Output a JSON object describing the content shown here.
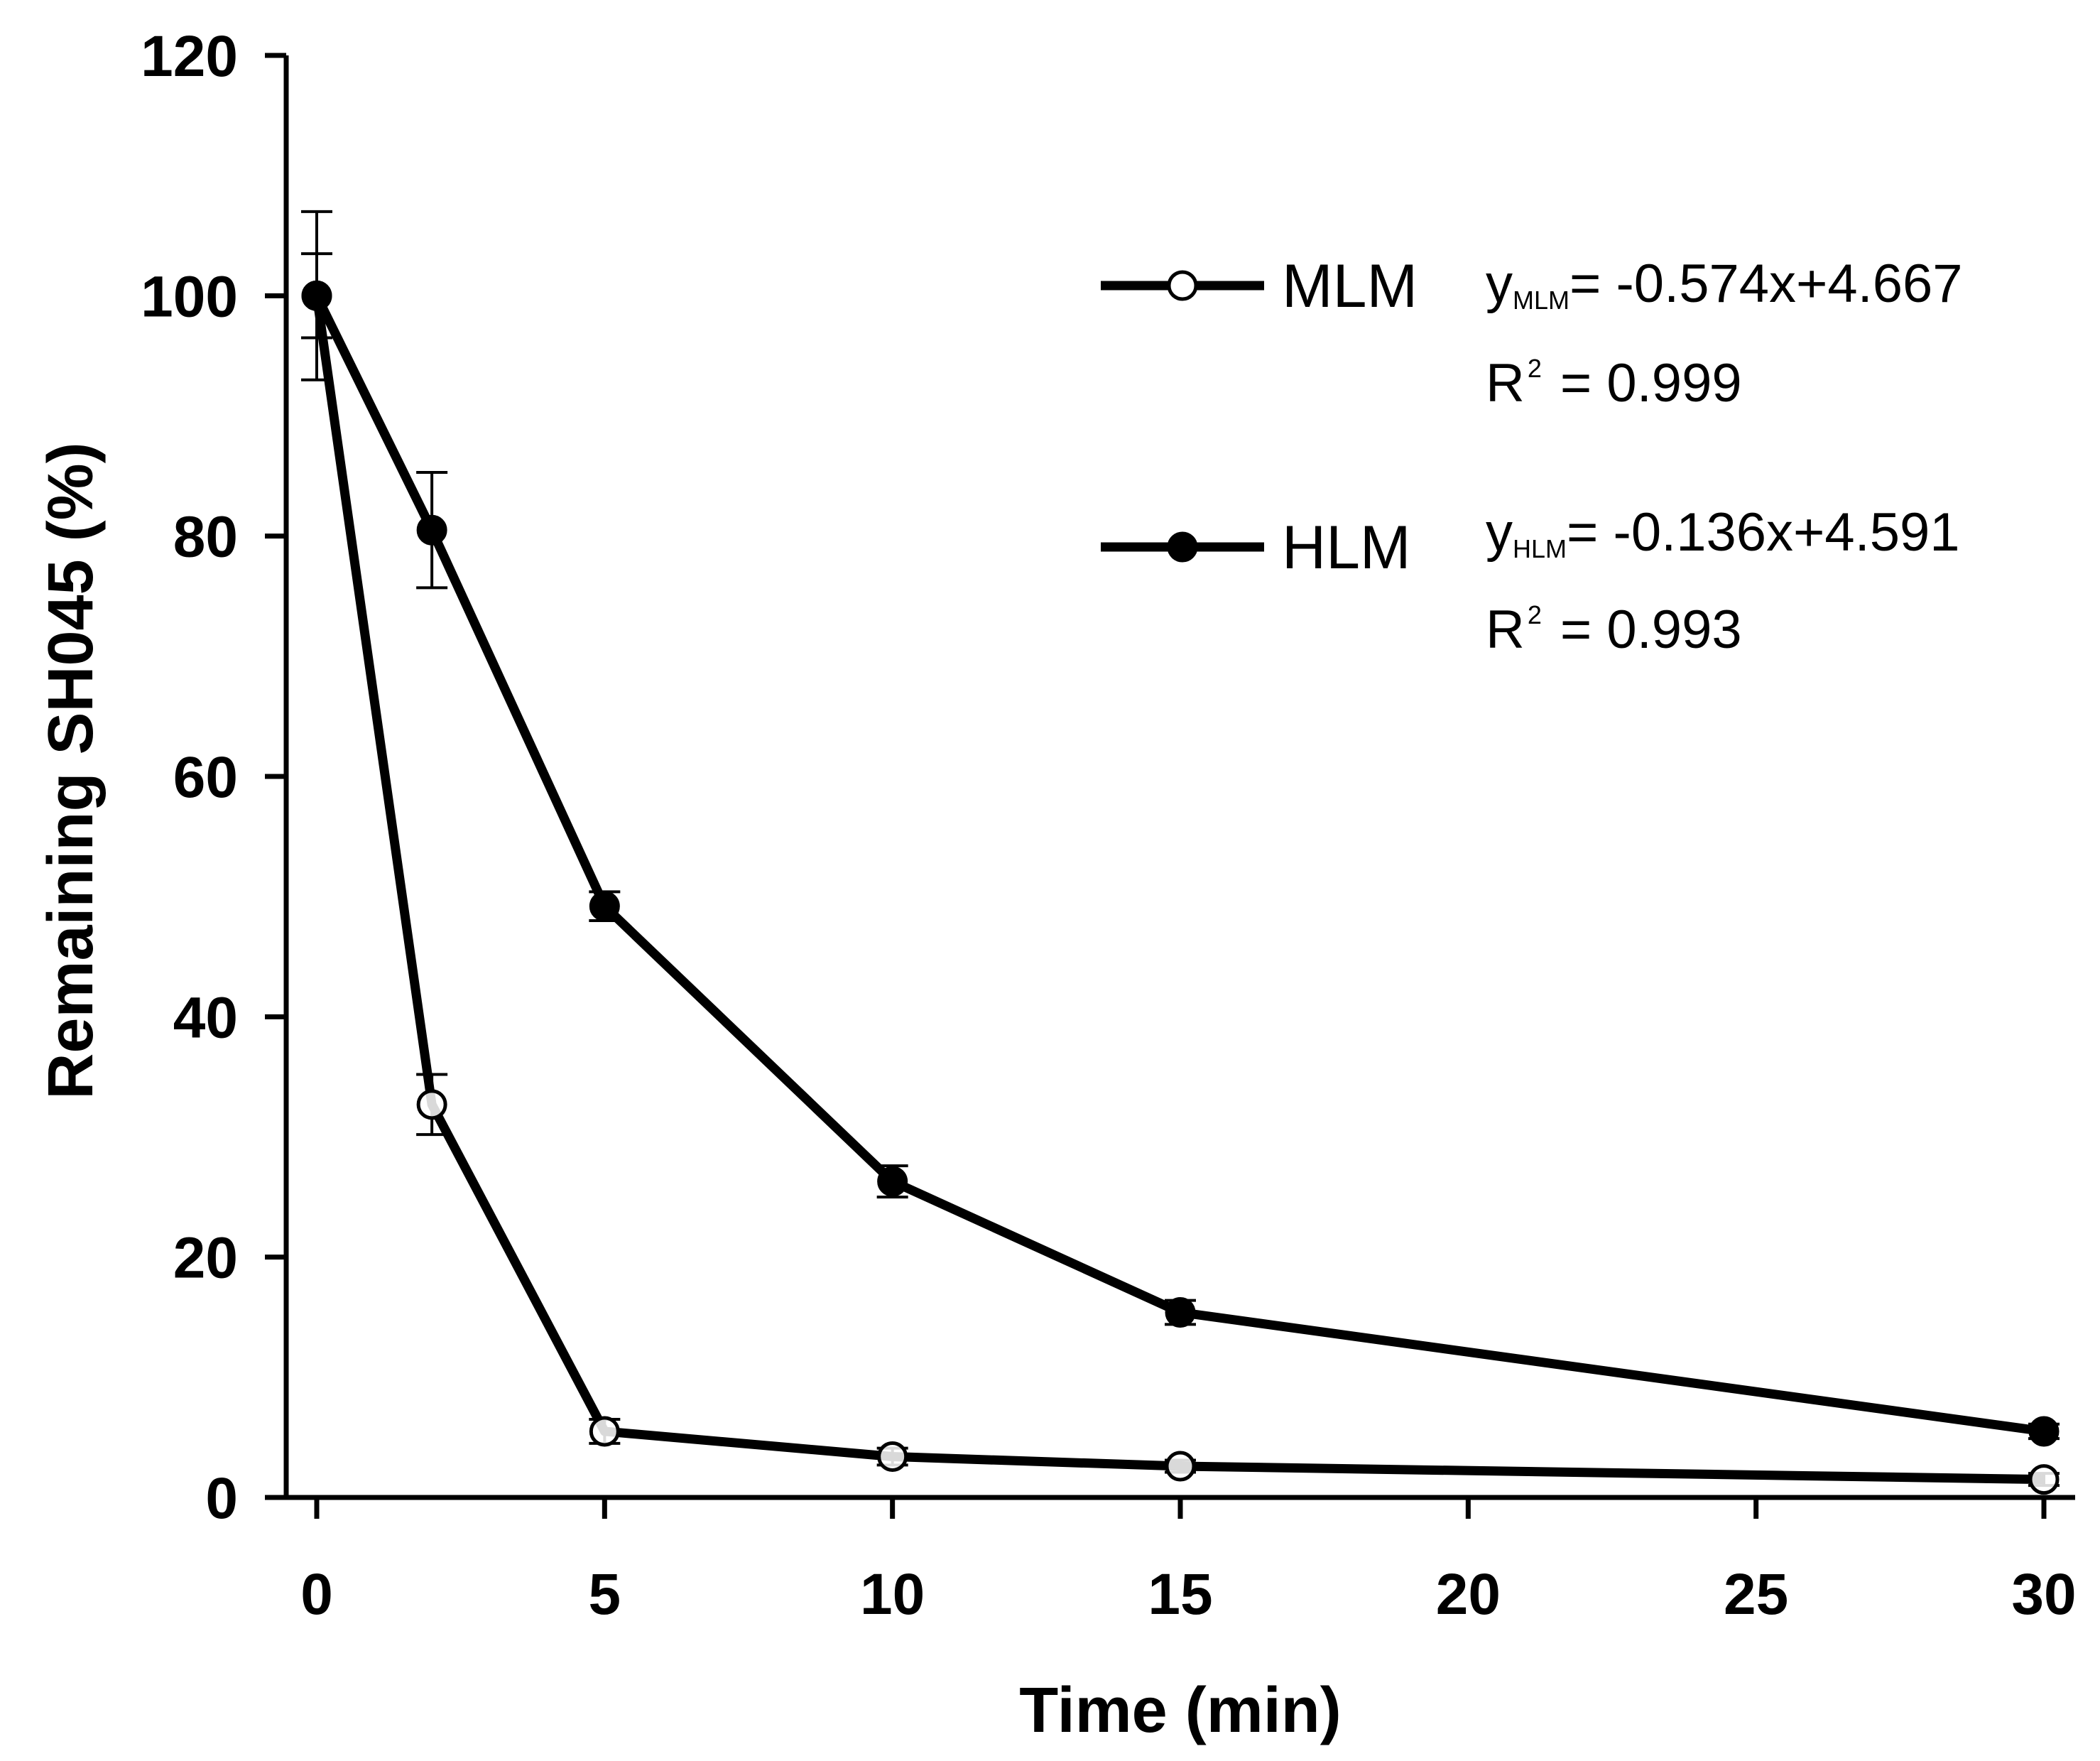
{
  "chart_data": {
    "type": "line",
    "title": "",
    "xlabel": "Time (min)",
    "ylabel": "Remaining SH045 (%)",
    "xlim": [
      -0.5,
      30.5
    ],
    "ylim": [
      0,
      120
    ],
    "x_ticks": [
      0,
      5,
      10,
      15,
      20,
      25,
      30
    ],
    "x_tick_labels": [
      "0",
      "5",
      "10",
      "15",
      "20",
      "25",
      "30"
    ],
    "y_ticks": [
      0,
      20,
      40,
      60,
      80,
      100,
      120
    ],
    "y_tick_labels": [
      "0",
      "20",
      "40",
      "60",
      "80",
      "100",
      "120"
    ],
    "grid": false,
    "legend_position": "top-right",
    "series": [
      {
        "name": "MLM",
        "marker": "open-circle",
        "x": [
          0,
          2,
          5,
          10,
          15,
          30
        ],
        "values": [
          100,
          32.7,
          5.5,
          3.4,
          2.6,
          1.5
        ],
        "errors": [
          7,
          2.5,
          1.0,
          0.7,
          0.5,
          0.5
        ],
        "equation_y": "y",
        "equation_sub": "MLM",
        "equation_rhs": "= -0.574x+4.667",
        "r2_base": "R",
        "r2_sup": "2",
        "r2_rhs": "=  0.999"
      },
      {
        "name": "HLM",
        "marker": "filled-circle",
        "x": [
          0,
          2,
          5,
          10,
          15,
          30
        ],
        "values": [
          100,
          80.5,
          49.2,
          26.3,
          15.4,
          5.5
        ],
        "errors": [
          3.5,
          4.8,
          1.2,
          1.3,
          1.0,
          0.6
        ],
        "equation_y": "y",
        "equation_sub": "HLM",
        "equation_rhs": "= -0.136x+4.591",
        "r2_base": "R",
        "r2_sup": "2",
        "r2_rhs": "=  0.993"
      }
    ]
  }
}
